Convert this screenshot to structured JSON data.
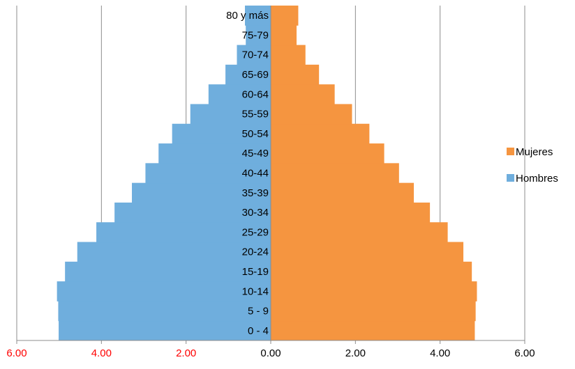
{
  "chart_data": {
    "type": "bar",
    "orientation": "horizontal",
    "layout": "population-pyramid",
    "categories": [
      "0 - 4",
      "5 - 9",
      "10-14",
      "15-19",
      "20-24",
      "25-29",
      "30-34",
      "35-39",
      "40-44",
      "45-49",
      "50-54",
      "55-59",
      "60-64",
      "65-69",
      "70-74",
      "75-79",
      "80 y más"
    ],
    "series": [
      {
        "name": "Mujeres",
        "side": "right",
        "color": "#F59540",
        "values": [
          4.82,
          4.84,
          4.87,
          4.75,
          4.55,
          4.18,
          3.76,
          3.38,
          3.03,
          2.68,
          2.33,
          1.92,
          1.51,
          1.14,
          0.82,
          0.61,
          0.65
        ]
      },
      {
        "name": "Hombres",
        "side": "left",
        "color": "#6FAEDD",
        "values": [
          5.01,
          5.02,
          5.05,
          4.86,
          4.57,
          4.12,
          3.69,
          3.28,
          2.96,
          2.65,
          2.33,
          1.9,
          1.47,
          1.07,
          0.8,
          0.59,
          0.61
        ]
      }
    ],
    "xlim": [
      -6,
      6
    ],
    "x_ticks": [
      {
        "value": -6,
        "label": "6.00",
        "color": "#FF0000"
      },
      {
        "value": -4,
        "label": "4.00",
        "color": "#FF0000"
      },
      {
        "value": -2,
        "label": "2.00",
        "color": "#FF0000"
      },
      {
        "value": 0,
        "label": "0.00",
        "color": "#000000"
      },
      {
        "value": 2,
        "label": "2.00",
        "color": "#000000"
      },
      {
        "value": 4,
        "label": "4.00",
        "color": "#000000"
      },
      {
        "value": 6,
        "label": "6.00",
        "color": "#000000"
      }
    ],
    "grid": true,
    "legend": {
      "position": "right",
      "entries": [
        "Mujeres",
        "Hombres"
      ]
    },
    "title": "",
    "xlabel": "",
    "ylabel": ""
  }
}
